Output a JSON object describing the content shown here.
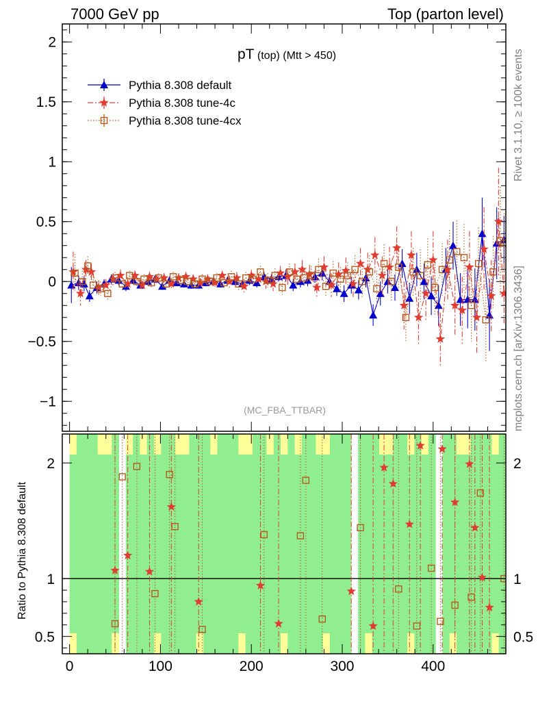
{
  "header": {
    "left": "7000 GeV pp",
    "right": "Top (parton level)"
  },
  "side_labels": {
    "rivet": "Rivet 3.1.10, ≥ 100k events",
    "mcplots": "mcplots.cern.ch [arXiv:1306.3436]"
  },
  "plot_title": {
    "main": "pT",
    "sub": " (top) (Mtt > 450)"
  },
  "analysis_tag": "(MC_FBA_TTBAR)",
  "ratio_ylabel": "Ratio to Pythia 8.308 default",
  "colors": {
    "default": "#0000cc",
    "tune4c": "#e03c31",
    "tune4cx": "#b35a1f",
    "band_green": "#90ee90",
    "band_yellow": "#ffff99"
  },
  "chart_data": [
    {
      "type": "scatter",
      "panel": "main",
      "xlim": [
        -8,
        480
      ],
      "ylim": [
        -1.25,
        2.15
      ],
      "yticks": [
        -1,
        -0.5,
        0,
        0.5,
        1,
        1.5,
        2
      ],
      "ytick_labels": [
        "−1",
        "−0.5",
        "0",
        "0.5",
        "1",
        "1.5",
        "2"
      ],
      "legend_position": "top-left",
      "series": [
        {
          "name": "Pythia 8.308 default",
          "marker": "triangle",
          "line": "solid",
          "x": [
            2,
            10,
            16,
            22,
            30,
            38,
            46,
            54,
            62,
            70,
            78,
            86,
            94,
            102,
            110,
            118,
            126,
            134,
            142,
            150,
            158,
            166,
            174,
            182,
            190,
            198,
            206,
            214,
            222,
            230,
            238,
            246,
            254,
            262,
            270,
            278,
            286,
            294,
            302,
            310,
            318,
            326,
            334,
            342,
            350,
            358,
            366,
            374,
            382,
            390,
            398,
            406,
            414,
            422,
            430,
            438,
            446,
            454,
            462,
            470,
            478
          ],
          "y": [
            -0.03,
            -0.01,
            -0.02,
            -0.12,
            -0.05,
            -0.02,
            0.02,
            0.01,
            -0.04,
            0.01,
            -0.03,
            0.0,
            0.02,
            -0.04,
            0.01,
            -0.01,
            -0.02,
            -0.03,
            -0.03,
            -0.01,
            0.0,
            -0.02,
            0.01,
            0.0,
            -0.02,
            0.01,
            -0.01,
            0.04,
            0.02,
            0.04,
            0.05,
            -0.03,
            0.0,
            0.01,
            0.04,
            0.07,
            0.0,
            -0.06,
            -0.1,
            -0.03,
            -0.07,
            0.03,
            -0.28,
            -0.1,
            0.0,
            -0.05,
            0.15,
            -0.14,
            0.1,
            0.0,
            -0.12,
            -0.2,
            0.1,
            0.3,
            -0.15,
            -0.15,
            -0.15,
            0.4,
            -0.28,
            0.32,
            0.35
          ],
          "err": [
            0.15,
            0.06,
            0.06,
            0.05,
            0.05,
            0.04,
            0.04,
            0.04,
            0.04,
            0.03,
            0.03,
            0.03,
            0.03,
            0.03,
            0.03,
            0.03,
            0.03,
            0.03,
            0.03,
            0.03,
            0.03,
            0.03,
            0.03,
            0.03,
            0.03,
            0.04,
            0.04,
            0.04,
            0.04,
            0.04,
            0.05,
            0.05,
            0.05,
            0.05,
            0.05,
            0.06,
            0.06,
            0.06,
            0.07,
            0.07,
            0.08,
            0.08,
            0.09,
            0.1,
            0.1,
            0.11,
            0.12,
            0.13,
            0.14,
            0.15,
            0.16,
            0.17,
            0.18,
            0.2,
            0.22,
            0.24,
            0.26,
            0.3,
            0.3,
            0.3,
            0.2
          ]
        },
        {
          "name": "Pythia 8.308 tune-4c",
          "marker": "star",
          "line": "dashdot",
          "x": [
            4,
            12,
            18,
            24,
            32,
            40,
            48,
            56,
            64,
            72,
            80,
            88,
            96,
            104,
            112,
            120,
            128,
            136,
            144,
            152,
            160,
            168,
            176,
            184,
            192,
            200,
            208,
            216,
            224,
            232,
            240,
            248,
            256,
            264,
            272,
            280,
            288,
            296,
            304,
            312,
            320,
            328,
            336,
            344,
            352,
            360,
            368,
            376,
            384,
            392,
            400,
            408,
            416,
            424,
            432,
            440,
            448,
            456,
            464,
            472,
            478
          ],
          "y": [
            0.08,
            -0.1,
            0.1,
            0.08,
            -0.05,
            -0.03,
            0.02,
            0.05,
            -0.02,
            0.05,
            -0.03,
            0.04,
            0.02,
            0.03,
            -0.02,
            0.03,
            0.04,
            0.02,
            -0.01,
            0.02,
            -0.01,
            0.05,
            0.0,
            0.03,
            -0.04,
            0.05,
            0.02,
            0.0,
            -0.02,
            0.07,
            0.04,
            0.08,
            0.1,
            0.06,
            -0.05,
            0.12,
            -0.03,
            0.06,
            0.09,
            -0.02,
            0.15,
            0.1,
            0.22,
            0.05,
            0.12,
            0.28,
            -0.2,
            0.22,
            -0.3,
            -0.1,
            0.18,
            -0.48,
            0.1,
            -0.2,
            -0.24,
            0.12,
            -0.3,
            0.27,
            -0.12,
            0.5,
            -0.1
          ],
          "err": [
            0.17,
            0.1,
            0.08,
            0.07,
            0.06,
            0.05,
            0.05,
            0.05,
            0.04,
            0.04,
            0.04,
            0.04,
            0.04,
            0.04,
            0.04,
            0.04,
            0.04,
            0.04,
            0.04,
            0.04,
            0.04,
            0.04,
            0.05,
            0.05,
            0.05,
            0.05,
            0.05,
            0.06,
            0.06,
            0.06,
            0.07,
            0.07,
            0.08,
            0.08,
            0.09,
            0.09,
            0.1,
            0.1,
            0.11,
            0.12,
            0.13,
            0.14,
            0.15,
            0.16,
            0.17,
            0.18,
            0.2,
            0.2,
            0.22,
            0.22,
            0.24,
            0.22,
            0.25,
            0.26,
            0.28,
            0.3,
            0.3,
            0.35,
            0.3,
            0.45,
            0.25
          ]
        },
        {
          "name": "Pythia 8.308 tune-4cx",
          "marker": "square",
          "line": "dotted",
          "x": [
            6,
            14,
            20,
            26,
            34,
            42,
            50,
            58,
            66,
            74,
            82,
            90,
            98,
            106,
            114,
            122,
            130,
            138,
            146,
            154,
            162,
            170,
            178,
            186,
            194,
            202,
            210,
            218,
            226,
            234,
            242,
            250,
            258,
            266,
            274,
            282,
            290,
            298,
            306,
            314,
            322,
            330,
            338,
            346,
            354,
            362,
            370,
            378,
            386,
            394,
            402,
            410,
            418,
            426,
            434,
            442,
            450,
            458,
            466,
            474,
            478
          ],
          "y": [
            0.07,
            0.0,
            0.13,
            -0.03,
            -0.06,
            -0.1,
            0.03,
            -0.02,
            0.05,
            0.0,
            0.02,
            -0.01,
            0.03,
            -0.02,
            0.04,
            0.01,
            0.0,
            -0.02,
            0.02,
            0.0,
            0.03,
            -0.01,
            0.04,
            -0.02,
            0.03,
            0.02,
            0.08,
            0.01,
            0.05,
            -0.05,
            0.08,
            0.02,
            0.03,
            0.05,
            0.1,
            -0.04,
            0.07,
            0.02,
            0.05,
            0.1,
            0.0,
            0.08,
            -0.06,
            0.15,
            0.0,
            0.12,
            -0.3,
            0.08,
            0.05,
            0.14,
            -0.05,
            0.1,
            0.18,
            0.25,
            0.2,
            -0.2,
            0.15,
            -0.32,
            0.08,
            0.34,
            0.32
          ],
          "err": [
            0.16,
            0.09,
            0.08,
            0.07,
            0.06,
            0.05,
            0.05,
            0.05,
            0.04,
            0.04,
            0.04,
            0.04,
            0.04,
            0.04,
            0.04,
            0.04,
            0.04,
            0.04,
            0.04,
            0.04,
            0.04,
            0.04,
            0.05,
            0.05,
            0.05,
            0.05,
            0.05,
            0.06,
            0.06,
            0.06,
            0.07,
            0.07,
            0.08,
            0.08,
            0.09,
            0.09,
            0.1,
            0.1,
            0.11,
            0.12,
            0.13,
            0.14,
            0.15,
            0.16,
            0.17,
            0.18,
            0.2,
            0.2,
            0.22,
            0.22,
            0.24,
            0.22,
            0.25,
            0.26,
            0.28,
            0.3,
            0.3,
            0.35,
            0.3,
            0.45,
            0.25
          ]
        }
      ]
    },
    {
      "type": "scatter",
      "panel": "ratio",
      "ylabel": "Ratio to Pythia 8.308 default",
      "xlim": [
        -8,
        480
      ],
      "ylim": [
        0.35,
        2.25
      ],
      "xticks": [
        0,
        100,
        200,
        300,
        400
      ],
      "yticks": [
        0.5,
        1,
        2
      ],
      "reference_line": 1,
      "series": [
        {
          "name": "Pythia 8.308 tune-4c",
          "marker": "star",
          "x": [
            50,
            64,
            88,
            112,
            142,
            210,
            230,
            310,
            334,
            346,
            356,
            374,
            386,
            410,
            424,
            440,
            446,
            454,
            462
          ],
          "y": [
            1.07,
            1.2,
            1.06,
            1.62,
            0.8,
            0.94,
            0.61,
            0.89,
            0.59,
            1.96,
            1.82,
            1.47,
            2.15,
            2.12,
            1.66,
            1.99,
            1.44,
            1.01,
            0.75
          ]
        },
        {
          "name": "Pythia 8.308 tune-4cx",
          "marker": "square",
          "x": [
            50,
            58,
            74,
            94,
            110,
            116,
            146,
            214,
            254,
            260,
            278,
            320,
            362,
            382,
            398,
            408,
            424,
            442,
            452,
            478
          ],
          "y": [
            0.61,
            1.88,
            1.97,
            0.87,
            1.9,
            1.45,
            0.56,
            1.38,
            1.37,
            1.85,
            0.65,
            1.44,
            0.91,
            0.59,
            1.09,
            0.63,
            0.77,
            0.84,
            1.74,
            1.0
          ]
        }
      ]
    }
  ]
}
